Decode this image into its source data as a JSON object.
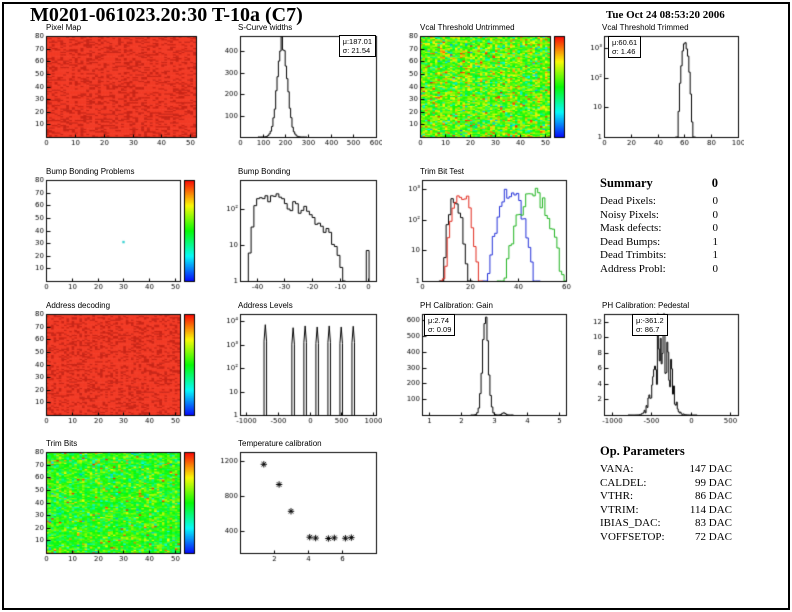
{
  "page": {
    "title": "M0201-061023.20:30 T-10a (C7)",
    "timestamp": "Tue Oct 24 08:53:20 2006"
  },
  "summary": {
    "title": "Summary",
    "value": "0",
    "rows": [
      {
        "label": "Dead Pixels:",
        "value": "0"
      },
      {
        "label": "Noisy Pixels:",
        "value": "0"
      },
      {
        "label": "Mask defects:",
        "value": "0"
      },
      {
        "label": "Dead Bumps:",
        "value": "1"
      },
      {
        "label": "Dead Trimbits:",
        "value": "1"
      },
      {
        "label": "Address Probl:",
        "value": "0"
      }
    ]
  },
  "op_parameters": {
    "title": "Op. Parameters",
    "rows": [
      {
        "label": "VANA:",
        "value": "147 DAC"
      },
      {
        "label": "CALDEL:",
        "value": "99 DAC"
      },
      {
        "label": "VTHR:",
        "value": "86 DAC"
      },
      {
        "label": "VTRIM:",
        "value": "114 DAC"
      },
      {
        "label": "IBIAS_DAC:",
        "value": "83 DAC"
      },
      {
        "label": "VOFFSETOP:",
        "value": "72 DAC"
      }
    ]
  },
  "chart_data": [
    {
      "id": "pixel-map",
      "type": "heatmap",
      "title": "Pixel Map",
      "x_range": [
        0,
        52
      ],
      "y_range": [
        0,
        80
      ],
      "x_ticks": [
        0,
        10,
        20,
        30,
        40,
        50
      ],
      "y_ticks": [
        10,
        20,
        30,
        40,
        50,
        60,
        70,
        80
      ],
      "style": "solid",
      "base_color": "#f23b26",
      "dot_color": "#c92517",
      "colorbar": false
    },
    {
      "id": "scurve-widths",
      "type": "hist",
      "title": "S-Curve widths",
      "x_range": [
        0,
        600
      ],
      "x_ticks": [
        0,
        100,
        200,
        300,
        400,
        500,
        600
      ],
      "y_scale": "linear",
      "y_range": [
        0,
        470
      ],
      "y_ticks": [
        100,
        200,
        300,
        400
      ],
      "hist": {
        "mu": 187.01,
        "sigma": 21.54,
        "peak": 445,
        "binw": 6,
        "noise": 0.08
      },
      "stats": [
        "μ:187.01",
        "σ: 21.54"
      ]
    },
    {
      "id": "vcal-threshold-untrimmed",
      "type": "heatmap",
      "title": "Vcal Threshold Untrimmed",
      "x_range": [
        0,
        52
      ],
      "y_range": [
        0,
        80
      ],
      "x_ticks": [
        0,
        10,
        20,
        30,
        40,
        50
      ],
      "y_ticks": [
        10,
        20,
        30,
        40,
        50,
        60,
        70,
        80
      ],
      "style": "noise",
      "noise_center": 0.58,
      "noise_spread": 0.12,
      "outlier_rate": 0.05,
      "colorbar": true
    },
    {
      "id": "vcal-threshold-trimmed",
      "type": "hist",
      "title": "Vcal Threshold Trimmed",
      "x_range": [
        0,
        100
      ],
      "x_ticks": [
        0,
        20,
        40,
        60,
        80,
        100
      ],
      "y_scale": "log",
      "y_exp_range": [
        0,
        3.4
      ],
      "y_ticks_exp": [
        0,
        1,
        2,
        3
      ],
      "hist": {
        "mu": 60.61,
        "sigma": 1.46,
        "peak": 1600,
        "binw": 1,
        "noise": 0.2
      },
      "stats": [
        "μ:60.61",
        "σ: 1.46"
      ]
    },
    {
      "id": "bump-bonding-problems",
      "type": "heatmap",
      "title": "Bump Bonding Problems",
      "x_range": [
        0,
        52
      ],
      "y_range": [
        0,
        80
      ],
      "x_ticks": [
        0,
        10,
        20,
        30,
        40,
        50
      ],
      "y_ticks": [
        10,
        20,
        30,
        40,
        50,
        60,
        70,
        80
      ],
      "style": "white",
      "dots": [
        {
          "x": 30,
          "y": 31,
          "color": "#3fd4d4"
        }
      ],
      "colorbar": true
    },
    {
      "id": "bump-bonding",
      "type": "hist",
      "title": "Bump Bonding",
      "x_range": [
        -46,
        3
      ],
      "x_ticks": [
        -40,
        -30,
        -20,
        -10,
        0
      ],
      "y_scale": "log",
      "y_exp_range": [
        0,
        2.8
      ],
      "y_ticks_exp": [
        0,
        1,
        2
      ],
      "profile": [
        [
          -43,
          2
        ],
        [
          -41.5,
          40
        ],
        [
          -40,
          160
        ],
        [
          -38,
          230
        ],
        [
          -36,
          170
        ],
        [
          -34,
          210
        ],
        [
          -32,
          240
        ],
        [
          -30,
          160
        ],
        [
          -28,
          110
        ],
        [
          -26,
          150
        ],
        [
          -24,
          95
        ],
        [
          -22,
          110
        ],
        [
          -20,
          55
        ],
        [
          -18,
          45
        ],
        [
          -16,
          22
        ],
        [
          -14,
          28
        ],
        [
          -12,
          9
        ],
        [
          -10,
          4
        ],
        [
          -8.5,
          1.5
        ]
      ],
      "binw": 1,
      "noise": 0.3,
      "extra_bars": [
        [
          -0.5,
          7
        ]
      ]
    },
    {
      "id": "trim-bit-test",
      "type": "multihist",
      "title": "Trim Bit Test",
      "x_range": [
        0,
        60
      ],
      "x_ticks": [
        0,
        20,
        40,
        60
      ],
      "y_scale": "log",
      "y_exp_range": [
        0,
        3.3
      ],
      "y_ticks_exp": [
        0,
        1,
        2,
        3
      ],
      "series": [
        {
          "name": "trim-bits-14",
          "color": "#000000",
          "mu": 13.8,
          "sigma": 1.5,
          "peak": 520,
          "binw": 1,
          "noise": 0.5
        },
        {
          "name": "trim-bits-13",
          "color": "#e12a1e",
          "mu": 16.5,
          "sigma": 2.0,
          "peak": 900,
          "binw": 1,
          "noise": 0.5
        },
        {
          "name": "trim-bits-11",
          "color": "#2330d8",
          "mu": 37.0,
          "sigma": 2.6,
          "peak": 950,
          "binw": 1,
          "noise": 0.5
        },
        {
          "name": "trim-bits-7",
          "color": "#1fb31f",
          "mu": 46.5,
          "sigma": 3.4,
          "peak": 760,
          "binw": 1,
          "noise": 0.5
        }
      ]
    },
    {
      "id": "address-decoding",
      "type": "heatmap",
      "title": "Address decoding",
      "x_range": [
        0,
        52
      ],
      "y_range": [
        0,
        80
      ],
      "x_ticks": [
        0,
        10,
        20,
        30,
        40,
        50
      ],
      "y_ticks": [
        10,
        20,
        30,
        40,
        50,
        60,
        70,
        80
      ],
      "style": "solid",
      "base_color": "#f23b26",
      "dot_color": "#c92517",
      "colorbar": true
    },
    {
      "id": "address-levels",
      "type": "spikes",
      "title": "Address Levels",
      "x_range": [
        -1100,
        1050
      ],
      "x_ticks": [
        -1000,
        -500,
        0,
        500,
        1000
      ],
      "y_scale": "log",
      "y_exp_range": [
        0,
        4.3
      ],
      "y_ticks_exp": [
        0,
        1,
        2,
        3,
        4
      ],
      "spikes": [
        [
          -700,
          7000
        ],
        [
          -260,
          5200
        ],
        [
          -70,
          6200
        ],
        [
          120,
          5600
        ],
        [
          310,
          6200
        ],
        [
          500,
          5600
        ],
        [
          690,
          6000
        ]
      ],
      "spike_halfwidth": 20
    },
    {
      "id": "ph-calibration-gain",
      "type": "hist",
      "title": "PH Calibration: Gain",
      "x_range": [
        0.8,
        5.2
      ],
      "x_ticks": [
        1,
        2,
        3,
        4,
        5
      ],
      "y_scale": "linear",
      "y_range": [
        0,
        640
      ],
      "y_ticks": [
        100,
        200,
        300,
        400,
        500,
        600
      ],
      "hist": {
        "mu": 2.74,
        "sigma": 0.09,
        "peak": 600,
        "binw": 0.045,
        "noise": 0.08
      },
      "components": [
        {
          "mu": 3.3,
          "sigma": 0.05,
          "peak": 14
        }
      ],
      "stats": [
        "μ:2.74",
        "σ: 0.09"
      ]
    },
    {
      "id": "ph-calibration-pedestal",
      "type": "hist",
      "title": "PH Calibration: Pedestal",
      "x_range": [
        -1100,
        600
      ],
      "x_ticks": [
        -1000,
        -500,
        0,
        500
      ],
      "y_scale": "linear",
      "y_range": [
        0,
        13
      ],
      "y_ticks": [
        2,
        4,
        6,
        8,
        10,
        12
      ],
      "hist": {
        "mu": -361.2,
        "sigma": 86.7,
        "peak": 11,
        "binw": 12,
        "noise": 0.55
      },
      "stats": [
        "μ:-361.2",
        "σ: 86.7"
      ]
    },
    {
      "id": "trim-bits-map",
      "type": "heatmap",
      "title": "Trim Bits",
      "x_range": [
        0,
        52
      ],
      "y_range": [
        0,
        80
      ],
      "x_ticks": [
        0,
        10,
        20,
        30,
        40,
        50
      ],
      "y_ticks": [
        10,
        20,
        30,
        40,
        50,
        60,
        70,
        80
      ],
      "style": "noise",
      "noise_center": 0.52,
      "noise_spread": 0.1,
      "outlier_rate": 0.03,
      "colorbar": true
    },
    {
      "id": "temperature-calibration",
      "type": "scatter",
      "title": "Temperature calibration",
      "x_range": [
        0,
        8
      ],
      "x_ticks": [
        2,
        4,
        6
      ],
      "y_scale": "linear",
      "y_range": [
        150,
        1300
      ],
      "y_ticks": [
        400,
        800,
        1200
      ],
      "points": [
        [
          1.4,
          1160
        ],
        [
          2.3,
          930
        ],
        [
          3.0,
          625
        ],
        [
          4.1,
          330
        ],
        [
          4.45,
          320
        ],
        [
          5.2,
          315
        ],
        [
          5.55,
          322
        ],
        [
          6.2,
          318
        ],
        [
          6.55,
          325
        ]
      ]
    }
  ]
}
